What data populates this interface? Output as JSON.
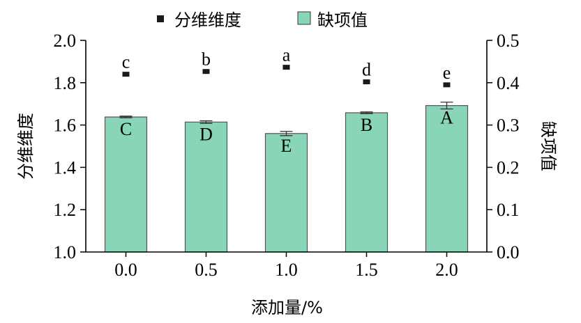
{
  "chart_data": {
    "type": "bar+scatter",
    "categories": [
      "0.0",
      "0.5",
      "1.0",
      "1.5",
      "2.0"
    ],
    "xlabel": "添加量/%",
    "ylabel_left": "分维维度",
    "ylabel_right": "缺项值",
    "ylim_left": [
      1.0,
      2.0
    ],
    "ylim_right": [
      0.0,
      0.5
    ],
    "yticks_left": [
      "1.0",
      "1.2",
      "1.4",
      "1.6",
      "1.8",
      "2.0"
    ],
    "yticks_right": [
      "0.0",
      "0.1",
      "0.2",
      "0.3",
      "0.4",
      "0.5"
    ],
    "legend_position": "top",
    "series": [
      {
        "name": "分维维度",
        "type": "scatter",
        "axis": "left",
        "marker": "square",
        "color": "#1a1a1a",
        "values": [
          1.84,
          1.853,
          1.873,
          1.804,
          1.79
        ],
        "errors": [
          0.003,
          0.002,
          0.002,
          0.003,
          0.002
        ],
        "labels": [
          "c",
          "b",
          "a",
          "d",
          "e"
        ]
      },
      {
        "name": "缺项值",
        "type": "bar",
        "axis": "right",
        "color": "#88d5b8",
        "values": [
          0.319,
          0.307,
          0.28,
          0.329,
          0.346
        ],
        "errors": [
          0.002,
          0.003,
          0.005,
          0.002,
          0.008
        ],
        "labels": [
          "C",
          "D",
          "E",
          "B",
          "A"
        ]
      }
    ]
  }
}
